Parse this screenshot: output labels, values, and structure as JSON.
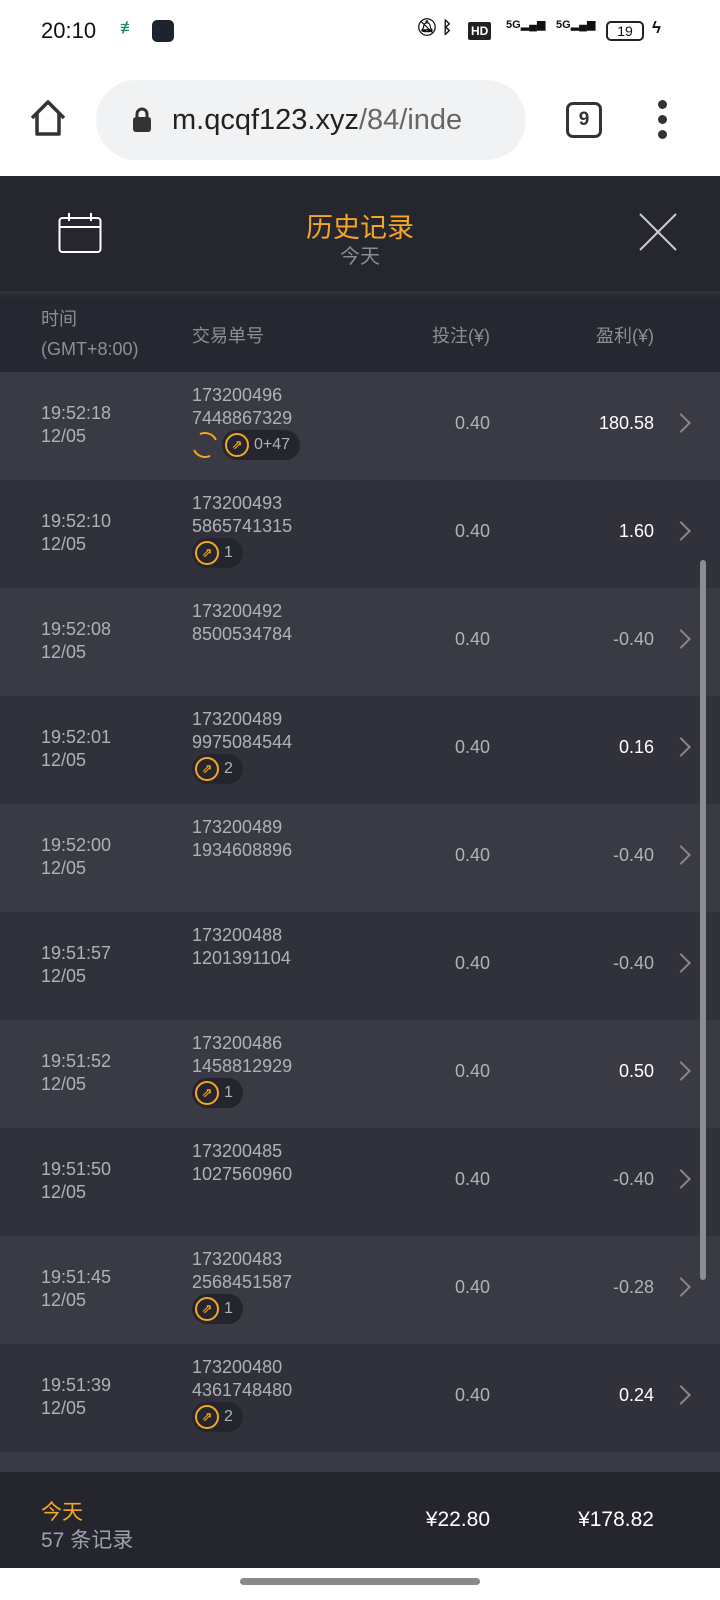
{
  "status_bar": {
    "time": "20:10",
    "battery": "19",
    "icons": [
      "bank-app-icon",
      "clock-app-icon",
      "bell-muted-icon",
      "bluetooth-icon",
      "hd-icon",
      "signal-5g-icon",
      "signal-5g-icon",
      "battery-icon",
      "charging-icon"
    ],
    "net1": "5G",
    "net2": "5G",
    "hd": "HD"
  },
  "browser": {
    "url_domain": "m.qcqf123.xyz",
    "url_path": "/84/inde",
    "tab_count": "9"
  },
  "header": {
    "title": "历史记录",
    "subtitle": "今天"
  },
  "columns": {
    "time": "时间",
    "tz": "(GMT+8:00)",
    "order": "交易单号",
    "bet": "投注(¥)",
    "profit": "盈利(¥)"
  },
  "rows": [
    {
      "time": "19:52:18",
      "date": "12/05",
      "id1": "173200496",
      "id2": "7448867329",
      "bet": "0.40",
      "profit": "180.58",
      "positive": true,
      "refresh": true,
      "badge": "0+47"
    },
    {
      "time": "19:52:10",
      "date": "12/05",
      "id1": "173200493",
      "id2": "5865741315",
      "bet": "0.40",
      "profit": "1.60",
      "positive": true,
      "badge": "1"
    },
    {
      "time": "19:52:08",
      "date": "12/05",
      "id1": "173200492",
      "id2": "8500534784",
      "bet": "0.40",
      "profit": "-0.40",
      "positive": false
    },
    {
      "time": "19:52:01",
      "date": "12/05",
      "id1": "173200489",
      "id2": "9975084544",
      "bet": "0.40",
      "profit": "0.16",
      "positive": true,
      "badge": "2"
    },
    {
      "time": "19:52:00",
      "date": "12/05",
      "id1": "173200489",
      "id2": "1934608896",
      "bet": "0.40",
      "profit": "-0.40",
      "positive": false
    },
    {
      "time": "19:51:57",
      "date": "12/05",
      "id1": "173200488",
      "id2": "1201391104",
      "bet": "0.40",
      "profit": "-0.40",
      "positive": false
    },
    {
      "time": "19:51:52",
      "date": "12/05",
      "id1": "173200486",
      "id2": "1458812929",
      "bet": "0.40",
      "profit": "0.50",
      "positive": true,
      "badge": "1"
    },
    {
      "time": "19:51:50",
      "date": "12/05",
      "id1": "173200485",
      "id2": "1027560960",
      "bet": "0.40",
      "profit": "-0.40",
      "positive": false
    },
    {
      "time": "19:51:45",
      "date": "12/05",
      "id1": "173200483",
      "id2": "2568451587",
      "bet": "0.40",
      "profit": "-0.28",
      "positive": false,
      "badge": "1"
    },
    {
      "time": "19:51:39",
      "date": "12/05",
      "id1": "173200480",
      "id2": "4361748480",
      "bet": "0.40",
      "profit": "0.24",
      "positive": true,
      "badge": "2"
    }
  ],
  "footer": {
    "period": "今天",
    "count": "57 条记录",
    "total_bet": "¥22.80",
    "total_profit": "¥178.82"
  },
  "colors": {
    "accent": "#f5a623",
    "background": "#2a2b33"
  }
}
